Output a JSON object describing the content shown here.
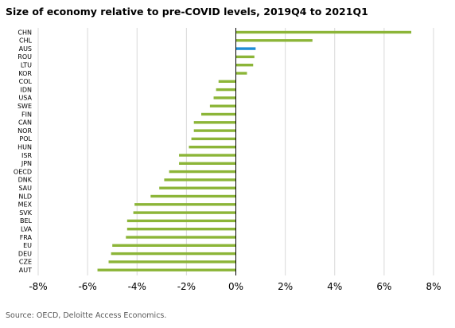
{
  "title": "Size of economy relative to pre-COVID levels, 2019Q4 to 2021Q1",
  "source": "Source: OECD, Deloitte Access Economics.",
  "chart_data": {
    "type": "bar",
    "orientation": "horizontal",
    "title": "Size of economy relative to pre-COVID levels, 2019Q4 to 2021Q1",
    "categories": [
      "CHN",
      "CHL",
      "AUS",
      "ROU",
      "LTU",
      "KOR",
      "COL",
      "IDN",
      "USA",
      "SWE",
      "FIN",
      "CAN",
      "NOR",
      "POL",
      "HUN",
      "ISR",
      "JPN",
      "OECD",
      "DNK",
      "SAU",
      "NLD",
      "MEX",
      "SVK",
      "BEL",
      "LVA",
      "FRA",
      "EU",
      "DEU",
      "CZE",
      "AUT"
    ],
    "values": [
      7.1,
      3.1,
      0.8,
      0.75,
      0.7,
      0.45,
      -0.7,
      -0.8,
      -0.9,
      -1.05,
      -1.4,
      -1.7,
      -1.7,
      -1.8,
      -1.9,
      -2.3,
      -2.3,
      -2.7,
      -2.9,
      -3.1,
      -3.45,
      -4.1,
      -4.15,
      -4.4,
      -4.4,
      -4.45,
      -5.0,
      -5.05,
      -5.15,
      -5.6
    ],
    "highlight": "AUS",
    "colors": {
      "bar": "#8CB538",
      "highlight": "#1F8DD6",
      "grid": "#D9D9D9",
      "axis": "#000000"
    },
    "xlim": [
      -8,
      8
    ],
    "xticks": [
      -8,
      -6,
      -4,
      -2,
      0,
      2,
      4,
      6,
      8
    ],
    "xtick_labels": [
      "-8%",
      "-6%",
      "-4%",
      "-2%",
      "0%",
      "2%",
      "4%",
      "6%",
      "8%"
    ],
    "grid": "vertical",
    "legend": "none"
  }
}
